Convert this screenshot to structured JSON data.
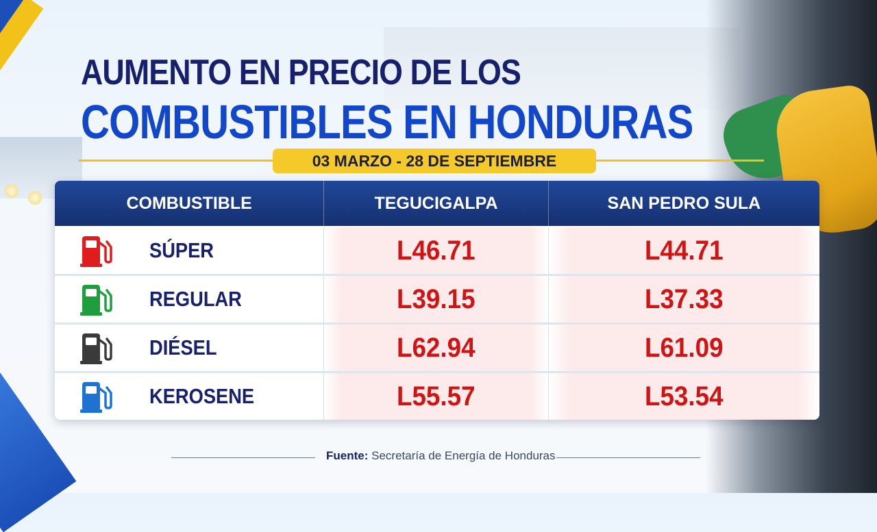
{
  "title": {
    "line1": "AUMENTO EN PRECIO DE LOS",
    "line2": "COMBUSTIBLES EN HONDURAS"
  },
  "date_range": "03 MARZO - 28 DE SEPTIEMBRE",
  "table": {
    "headers": [
      "COMBUSTIBLE",
      "TEGUCIGALPA",
      "SAN PEDRO SULA"
    ],
    "rows": [
      {
        "fuel": "SÚPER",
        "icon": "fuel-pump-icon",
        "color": "#e01c1c",
        "tegucigalpa": "L46.71",
        "san_pedro_sula": "L44.71"
      },
      {
        "fuel": "REGULAR",
        "icon": "fuel-pump-icon",
        "color": "#1e9e3c",
        "tegucigalpa": "L39.15",
        "san_pedro_sula": "L37.33"
      },
      {
        "fuel": "DIÉSEL",
        "icon": "fuel-pump-icon",
        "color": "#3a3a3a",
        "tegucigalpa": "L62.94",
        "san_pedro_sula": "L61.09"
      },
      {
        "fuel": "KEROSENE",
        "icon": "fuel-pump-icon",
        "color": "#1e73d2",
        "tegucigalpa": "L55.57",
        "san_pedro_sula": "L53.54"
      }
    ]
  },
  "footer": {
    "label": "Fuente:",
    "source": "Secretaría de Energía de Honduras"
  },
  "colors": {
    "title_dark": "#16206b",
    "title_blue": "#1347c9",
    "accent_yellow": "#f6c92a",
    "price_red": "#d01414",
    "header_blue": "#1d3f8c"
  }
}
